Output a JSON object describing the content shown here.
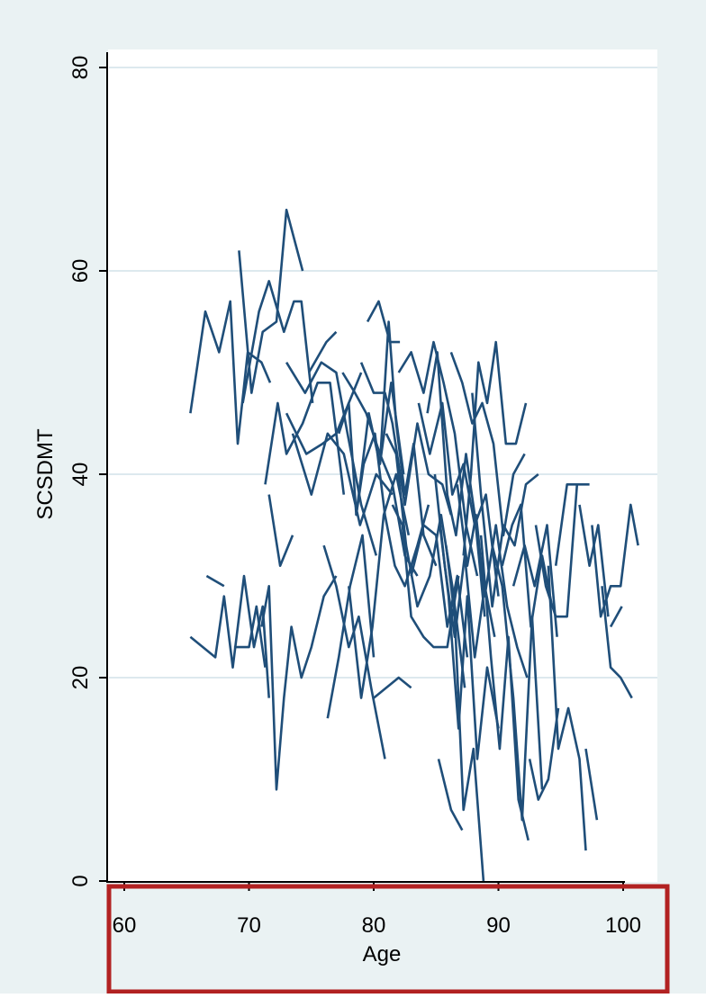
{
  "chart_data": {
    "type": "line",
    "title": "",
    "xlabel": "Age",
    "ylabel": "SCSDMT",
    "xlim": [
      58,
      102
    ],
    "ylim": [
      0,
      80
    ],
    "xticks": [
      60,
      70,
      80,
      90,
      100
    ],
    "yticks": [
      0,
      20,
      40,
      60,
      80
    ],
    "xtick_labels": [
      "60",
      "70",
      "80",
      "90",
      "100"
    ],
    "ytick_labels": [
      "0",
      "20",
      "40",
      "60",
      "80"
    ],
    "grid": "horizontal",
    "legend": "none",
    "colors": {
      "line": "#1f4e79",
      "plot_bg": "#ffffff",
      "outer_bg": "#eaf2f3",
      "grid": "#dde9ee",
      "highlight": "#b22222"
    },
    "highlight_box": "x-axis region",
    "series": [
      {
        "x": [
          65.3,
          66.5,
          67.6,
          68.5,
          69.1,
          69.9,
          71.0,
          71.7
        ],
        "y": [
          46,
          56,
          52,
          57,
          43,
          52,
          51,
          49
        ]
      },
      {
        "x": [
          69.2,
          70.2,
          71.1,
          72.2,
          73.0,
          74.3
        ],
        "y": [
          62,
          48,
          54,
          55,
          66,
          60
        ]
      },
      {
        "x": [
          69.5,
          70.8,
          71.6,
          72.8,
          73.6,
          74.2,
          75.1
        ],
        "y": [
          47,
          56,
          59,
          54,
          57,
          57,
          47
        ]
      },
      {
        "x": [
          65.3,
          67.3,
          68.0,
          68.7,
          69.6,
          70.4,
          71.1,
          71.6
        ],
        "y": [
          24,
          22,
          28,
          21,
          30,
          23,
          27,
          18
        ]
      },
      {
        "x": [
          66.6,
          68.0
        ],
        "y": [
          30,
          29
        ]
      },
      {
        "x": [
          68.8,
          70.0,
          70.6,
          71.3
        ],
        "y": [
          23,
          23,
          27,
          21
        ]
      },
      {
        "x": [
          71.0,
          71.6,
          72.2,
          72.8,
          73.4,
          74.2,
          75.0,
          76.0,
          77.0
        ],
        "y": [
          25,
          29,
          9,
          18,
          25,
          20,
          23,
          28,
          30
        ]
      },
      {
        "x": [
          71.3,
          72.3,
          73.0,
          74.3,
          75.5,
          76.5,
          77.6
        ],
        "y": [
          39,
          47,
          42,
          45,
          49,
          49,
          38
        ]
      },
      {
        "x": [
          71.6,
          72.5,
          73.5
        ],
        "y": [
          38,
          31,
          34
        ]
      },
      {
        "x": [
          73.0,
          74.6,
          75.9,
          77.0,
          78.0,
          79.0
        ],
        "y": [
          46,
          42,
          43,
          44,
          47,
          50
        ]
      },
      {
        "x": [
          73.5,
          75.0,
          76.3,
          77.6,
          78.9,
          80.2,
          81.5
        ],
        "y": [
          44,
          38,
          44,
          42,
          35,
          40,
          38
        ]
      },
      {
        "x": [
          73.0,
          74.5,
          75.8,
          77.0,
          77.9,
          79.0,
          80.2
        ],
        "y": [
          51,
          48,
          51,
          50,
          44,
          37,
          32
        ]
      },
      {
        "x": [
          74.8,
          76.2,
          77.0
        ],
        "y": [
          50,
          53,
          54
        ]
      },
      {
        "x": [
          76.0,
          77.0,
          78.0,
          78.8,
          79.8,
          80.9
        ],
        "y": [
          33,
          29,
          23,
          26,
          19,
          12
        ]
      },
      {
        "x": [
          76.3,
          77.2,
          78.1,
          79.1,
          80.0
        ],
        "y": [
          16,
          22,
          29,
          34,
          22
        ]
      },
      {
        "x": [
          77.2,
          78.0,
          78.6,
          79.2,
          80.1,
          80.9,
          81.7,
          82.5,
          83.5,
          84.4
        ],
        "y": [
          44,
          47,
          36,
          41,
          44,
          36,
          31,
          29,
          33,
          37
        ]
      },
      {
        "x": [
          77.5,
          78.5,
          79.4,
          80.5,
          81.5,
          82.5,
          83.5
        ],
        "y": [
          50,
          48,
          46,
          42,
          39,
          32,
          30
        ]
      },
      {
        "x": [
          78.0,
          79.0,
          79.9,
          80.8,
          81.8,
          82.8
        ],
        "y": [
          29,
          18,
          25,
          36,
          40,
          34
        ]
      },
      {
        "x": [
          78.6,
          79.6,
          80.5,
          81.4,
          82.4
        ],
        "y": [
          36,
          46,
          41,
          49,
          40
        ]
      },
      {
        "x": [
          79.0,
          80.0,
          80.9,
          81.5,
          82.5,
          83.5,
          84.4,
          85.5,
          86.2
        ],
        "y": [
          51,
          48,
          48,
          45,
          37,
          45,
          40,
          39,
          36
        ]
      },
      {
        "x": [
          79.5,
          80.4,
          81.3,
          82.1
        ],
        "y": [
          55,
          57,
          53,
          53
        ]
      },
      {
        "x": [
          80.0,
          81.0,
          82.0,
          83.0
        ],
        "y": [
          18,
          19,
          20,
          19
        ]
      },
      {
        "x": [
          80.5,
          81.2,
          81.8,
          82.5,
          83.2,
          84.0,
          85.0
        ],
        "y": [
          41,
          55,
          45,
          38,
          43,
          34,
          31
        ]
      },
      {
        "x": [
          81.0,
          81.8,
          82.6,
          83.5,
          84.5,
          85.4,
          86.3,
          87.3
        ],
        "y": [
          44,
          42,
          33,
          27,
          30,
          36,
          29,
          19
        ]
      },
      {
        "x": [
          81.5,
          82.3,
          83.0,
          84.0,
          84.8,
          85.9,
          86.8
        ],
        "y": [
          37,
          35,
          26,
          24,
          23,
          23,
          30
        ]
      },
      {
        "x": [
          82.0,
          83.0,
          84.0,
          84.8,
          85.6,
          86.5,
          87.4,
          88.3
        ],
        "y": [
          50,
          52,
          48,
          53,
          49,
          44,
          35,
          30
        ]
      },
      {
        "x": [
          83.0,
          84.0,
          85.0,
          85.9,
          86.7,
          87.5
        ],
        "y": [
          30,
          35,
          34,
          25,
          30,
          22
        ]
      },
      {
        "x": [
          83.6,
          84.5,
          85.5,
          86.3,
          87.2,
          88.1,
          89.0,
          90.0
        ],
        "y": [
          47,
          42,
          47,
          38,
          41,
          35,
          38,
          28
        ]
      },
      {
        "x": [
          84.3,
          85.1,
          85.9,
          86.6,
          87.4,
          88.1,
          88.9
        ],
        "y": [
          46,
          52,
          38,
          34,
          42,
          36,
          26
        ]
      },
      {
        "x": [
          84.9,
          85.7,
          86.5,
          87.3,
          88.1,
          88.9,
          89.7
        ],
        "y": [
          40,
          31,
          24,
          32,
          22,
          29,
          24
        ]
      },
      {
        "x": [
          85.3,
          86.0,
          86.8,
          87.5,
          88.3,
          89.1,
          90.0
        ],
        "y": [
          35,
          28,
          15,
          28,
          12,
          21,
          15
        ]
      },
      {
        "x": [
          85.2,
          86.2,
          87.1
        ],
        "y": [
          12,
          7,
          5
        ]
      },
      {
        "x": [
          85.8,
          86.5,
          87.2,
          88.0,
          88.8
        ],
        "y": [
          33,
          26,
          7,
          13,
          0
        ]
      },
      {
        "x": [
          86.2,
          87.1,
          87.9,
          88.7,
          89.6,
          90.4,
          91.2,
          92.1
        ],
        "y": [
          52,
          49,
          45,
          47,
          43,
          34,
          40,
          42
        ]
      },
      {
        "x": [
          86.7,
          87.5,
          88.2,
          88.9,
          89.8,
          90.7,
          91.5,
          92.3
        ],
        "y": [
          39,
          31,
          36,
          28,
          35,
          27,
          23,
          20
        ]
      },
      {
        "x": [
          87.2,
          87.8,
          88.4,
          89.1,
          89.8,
          90.6,
          91.4,
          92.2
        ],
        "y": [
          32,
          40,
          51,
          47,
          53,
          43,
          43,
          47
        ]
      },
      {
        "x": [
          87.9,
          88.6,
          89.5,
          90.4,
          91.3,
          92.2,
          93.2
        ],
        "y": [
          48,
          38,
          27,
          35,
          33,
          39,
          40
        ]
      },
      {
        "x": [
          88.6,
          89.4,
          90.1,
          90.8,
          91.6,
          92.4
        ],
        "y": [
          34,
          22,
          13,
          24,
          8,
          4
        ]
      },
      {
        "x": [
          89.5,
          90.3,
          91.2,
          91.9,
          92.7,
          93.5
        ],
        "y": [
          33,
          29,
          18,
          6,
          26,
          9
        ]
      },
      {
        "x": [
          90.3,
          91.1,
          91.8,
          92.6,
          93.5,
          94.3
        ],
        "y": [
          31,
          35,
          37,
          25,
          32,
          27
        ]
      },
      {
        "x": [
          91.2,
          92.1,
          92.9,
          93.9,
          94.7
        ],
        "y": [
          29,
          33,
          29,
          35,
          24
        ]
      },
      {
        "x": [
          92.5,
          93.2,
          94.0,
          94.8
        ],
        "y": [
          12,
          8,
          10,
          17
        ]
      },
      {
        "x": [
          93.0,
          93.8,
          94.6,
          95.5,
          96.3
        ],
        "y": [
          35,
          29,
          26,
          26,
          39
        ]
      },
      {
        "x": [
          94.0,
          94.8,
          95.6,
          96.5,
          97.0
        ],
        "y": [
          31,
          13,
          17,
          12,
          3
        ]
      },
      {
        "x": [
          94.6,
          95.5,
          96.5,
          97.3
        ],
        "y": [
          31,
          39,
          39,
          39
        ]
      },
      {
        "x": [
          96.5,
          97.3,
          98.0,
          98.8
        ],
        "y": [
          37,
          31,
          35,
          26
        ]
      },
      {
        "x": [
          97.0,
          97.9
        ],
        "y": [
          13,
          6
        ]
      },
      {
        "x": [
          97.5,
          98.2,
          99.0,
          99.8,
          100.6,
          101.2
        ],
        "y": [
          35,
          26,
          29,
          29,
          37,
          33
        ]
      },
      {
        "x": [
          98.3,
          99.0,
          99.8,
          100.7
        ],
        "y": [
          29,
          21,
          20,
          18
        ]
      },
      {
        "x": [
          99.0,
          99.9
        ],
        "y": [
          25,
          27
        ]
      }
    ]
  }
}
